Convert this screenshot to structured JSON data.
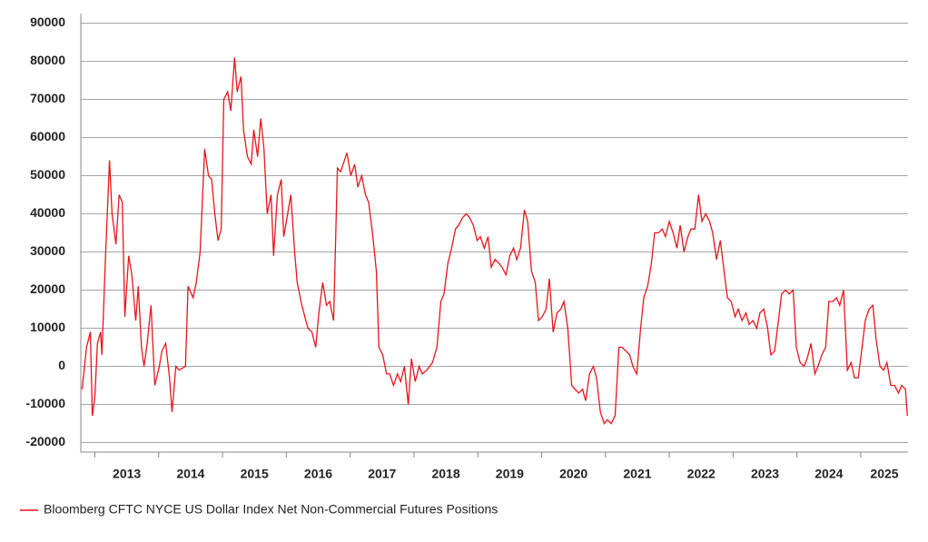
{
  "chart_data": {
    "type": "line",
    "x": [
      2012.8,
      2012.87,
      2012.93,
      2012.96,
      2013.0,
      2013.04,
      2013.09,
      2013.11,
      2013.17,
      2013.23,
      2013.27,
      2013.33,
      2013.38,
      2013.43,
      2013.47,
      2013.53,
      2013.58,
      2013.64,
      2013.68,
      2013.73,
      2013.77,
      2013.82,
      2013.88,
      2013.94,
      2014.01,
      2014.05,
      2014.11,
      2014.17,
      2014.21,
      2014.27,
      2014.32,
      2014.42,
      2014.46,
      2014.54,
      2014.59,
      2014.65,
      2014.72,
      2014.78,
      2014.83,
      2014.88,
      2014.93,
      2014.98,
      2015.02,
      2015.08,
      2015.13,
      2015.19,
      2015.23,
      2015.29,
      2015.33,
      2015.39,
      2015.45,
      2015.49,
      2015.55,
      2015.6,
      2015.65,
      2015.7,
      2015.76,
      2015.8,
      2015.86,
      2015.92,
      2015.96,
      2016.02,
      2016.07,
      2016.13,
      2016.17,
      2016.23,
      2016.29,
      2016.34,
      2016.4,
      2016.46,
      2016.51,
      2016.57,
      2016.63,
      2016.68,
      2016.74,
      2016.8,
      2016.85,
      2016.91,
      2016.95,
      2017.01,
      2017.07,
      2017.12,
      2017.18,
      2017.24,
      2017.29,
      2017.35,
      2017.41,
      2017.45,
      2017.51,
      2017.57,
      2017.62,
      2017.68,
      2017.74,
      2017.79,
      2017.85,
      2017.91,
      2017.96,
      2018.02,
      2018.08,
      2018.13,
      2018.2,
      2018.29,
      2018.36,
      2018.42,
      2018.47,
      2018.53,
      2018.59,
      2018.65,
      2018.7,
      2018.76,
      2018.82,
      2018.87,
      2018.93,
      2018.99,
      2019.04,
      2019.1,
      2019.16,
      2019.21,
      2019.27,
      2019.33,
      2019.38,
      2019.44,
      2019.5,
      2019.56,
      2019.61,
      2019.67,
      2019.73,
      2019.78,
      2019.84,
      2019.9,
      2019.95,
      2020.01,
      2020.07,
      2020.12,
      2020.18,
      2020.24,
      2020.3,
      2020.35,
      2020.41,
      2020.47,
      2020.52,
      2020.58,
      2020.64,
      2020.69,
      2020.75,
      2020.81,
      2020.86,
      2020.92,
      2020.98,
      2021.03,
      2021.09,
      2021.15,
      2021.21,
      2021.26,
      2021.32,
      2021.38,
      2021.43,
      2021.49,
      2021.55,
      2021.6,
      2021.66,
      2021.72,
      2021.77,
      2021.83,
      2021.89,
      2021.94,
      2022.0,
      2022.06,
      2022.12,
      2022.17,
      2022.23,
      2022.29,
      2022.34,
      2022.4,
      2022.46,
      2022.51,
      2022.57,
      2022.63,
      2022.68,
      2022.74,
      2022.8,
      2022.85,
      2022.91,
      2022.97,
      2023.03,
      2023.08,
      2023.14,
      2023.2,
      2023.25,
      2023.31,
      2023.37,
      2023.42,
      2023.48,
      2023.54,
      2023.59,
      2023.65,
      2023.71,
      2023.76,
      2023.82,
      2023.88,
      2023.94,
      2023.99,
      2024.05,
      2024.11,
      2024.16,
      2024.22,
      2024.28,
      2024.33,
      2024.39,
      2024.45,
      2024.5,
      2024.56,
      2024.62,
      2024.67,
      2024.73,
      2024.79,
      2024.85,
      2024.9,
      2024.96,
      2025.02,
      2025.07,
      2025.13,
      2025.19,
      2025.24,
      2025.3,
      2025.36,
      2025.41,
      2025.47,
      2025.53,
      2025.59,
      2025.64,
      2025.7,
      2025.73
    ],
    "series": [
      {
        "name": "Bloomberg CFTC NYCE US Dollar Index Net Non-Commercial Futures Positions",
        "color": "#e8141c",
        "values": [
          -6000,
          5000,
          9000,
          -13000,
          -8000,
          6000,
          9000,
          3000,
          30000,
          54000,
          40000,
          32000,
          45000,
          43000,
          13000,
          29000,
          24000,
          12000,
          21000,
          5000,
          0,
          6000,
          16000,
          -5000,
          0,
          4000,
          6000,
          -3000,
          -12000,
          0,
          -1000,
          0,
          21000,
          18000,
          22000,
          30000,
          57000,
          50000,
          49000,
          40000,
          33000,
          36000,
          70000,
          72000,
          67000,
          81000,
          72000,
          76000,
          62000,
          55000,
          53000,
          62000,
          55000,
          65000,
          57000,
          40000,
          45000,
          29000,
          45000,
          49000,
          34000,
          40000,
          45000,
          30000,
          22000,
          17000,
          13000,
          10000,
          9000,
          5000,
          14000,
          22000,
          16000,
          17000,
          12000,
          52000,
          51000,
          54000,
          56000,
          50000,
          53000,
          47000,
          50000,
          45000,
          43000,
          35000,
          25000,
          5000,
          3000,
          -2000,
          -2000,
          -5000,
          -2000,
          -4000,
          0,
          -10000,
          2000,
          -4000,
          0,
          -2000,
          -1000,
          1000,
          5000,
          17000,
          19000,
          27000,
          31000,
          36000,
          37000,
          39000,
          40000,
          39000,
          37000,
          33000,
          34000,
          31000,
          34000,
          26000,
          28000,
          27000,
          26000,
          24000,
          29000,
          31000,
          28000,
          31000,
          41000,
          38000,
          25000,
          22000,
          12000,
          13000,
          15000,
          23000,
          9000,
          14000,
          15000,
          17000,
          10000,
          -5000,
          -6000,
          -7000,
          -6000,
          -9000,
          -2000,
          0,
          -3000,
          -12000,
          -15000,
          -14000,
          -15000,
          -13000,
          5000,
          5000,
          4000,
          3000,
          0,
          -2000,
          10000,
          18000,
          21000,
          27000,
          35000,
          35000,
          36000,
          34000,
          38000,
          35000,
          31000,
          37000,
          30000,
          34000,
          36000,
          36000,
          45000,
          38000,
          40000,
          38000,
          35000,
          28000,
          33000,
          26000,
          18000,
          17000,
          13000,
          15000,
          12000,
          14000,
          11000,
          12000,
          10000,
          14000,
          15000,
          10000,
          3000,
          4000,
          12000,
          19000,
          20000,
          19000,
          20000,
          5000,
          1000,
          0,
          2000,
          6000,
          -2000,
          0,
          3000,
          5000,
          17000,
          17000,
          18000,
          16000,
          20000,
          -1000,
          1000,
          -3000,
          -3000,
          5000,
          12000,
          15000,
          16000,
          7000,
          0,
          -1000,
          1000,
          -5000,
          -5000,
          -7000,
          -5000,
          -6000,
          -13000
        ]
      }
    ],
    "xlim": [
      2012.78,
      2025.74
    ],
    "xticks": [
      2013,
      2014,
      2015,
      2016,
      2017,
      2018,
      2019,
      2020,
      2021,
      2022,
      2023,
      2024,
      2025
    ],
    "ylim": [
      -22500,
      92500
    ],
    "yticks": [
      -20000,
      -10000,
      0,
      10000,
      20000,
      30000,
      40000,
      50000,
      60000,
      70000,
      80000,
      90000
    ],
    "grid": true,
    "legend": "bottom-left"
  }
}
